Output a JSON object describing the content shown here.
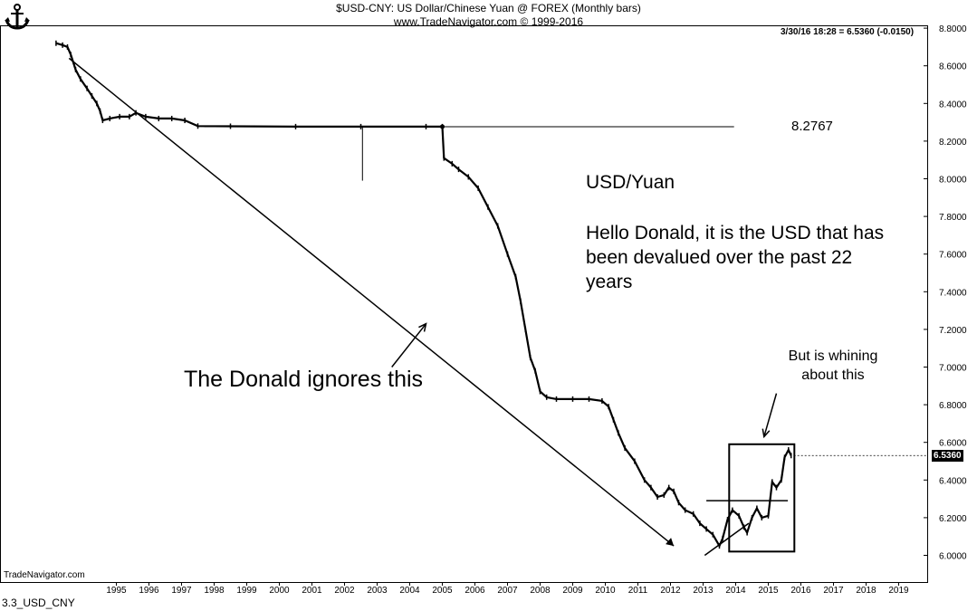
{
  "header": {
    "title": "$USD-CNY:  US Dollar/Chinese Yuan @ FOREX  (Monthly bars)",
    "subtitle": "www.TradeNavigator.com © 1999-2016",
    "quote": "3/30/16 18:28 = 6.5360 (-0.0150)",
    "watermark": "TradeNavigator.com",
    "figure_label": "3.3_USD_CNY"
  },
  "annotations": {
    "fixed_level": "8.2767",
    "pair": "USD/Yuan",
    "message": "Hello Donald, it is the USD that has been devalued over the past 22 years",
    "ignore": "The Donald ignores this",
    "whining": "But is whining about this"
  },
  "chart_data": {
    "type": "line",
    "title": "$USD-CNY:  US Dollar/Chinese Yuan @ FOREX  (Monthly bars)",
    "xlabel": "",
    "ylabel": "",
    "x_range": [
      1994,
      2019.5
    ],
    "ylim": [
      5.8,
      8.8
    ],
    "x_ticks": [
      "1995",
      "1996",
      "1997",
      "1998",
      "1999",
      "2000",
      "2001",
      "2002",
      "2003",
      "2004",
      "2005",
      "2006",
      "2007",
      "2008",
      "2009",
      "2010",
      "2011",
      "2012",
      "2013",
      "2014",
      "2015",
      "2016",
      "2017",
      "2018",
      "2019"
    ],
    "y_ticks": [
      "6.0000",
      "6.2000",
      "6.4000",
      "6.6000",
      "6.8000",
      "7.0000",
      "7.2000",
      "7.4000",
      "7.6000",
      "7.8000",
      "8.0000",
      "8.2000",
      "8.4000",
      "8.6000",
      "8.8000"
    ],
    "grid": false,
    "last_value": "6.5360",
    "series": [
      {
        "values": [
          [
            1993.65,
            8.72
          ],
          [
            1993.85,
            8.71
          ],
          [
            1994.0,
            8.7
          ],
          [
            1994.1,
            8.66
          ],
          [
            1994.25,
            8.58
          ],
          [
            1994.4,
            8.53
          ],
          [
            1994.6,
            8.48
          ],
          [
            1994.75,
            8.44
          ],
          [
            1994.9,
            8.4
          ],
          [
            1995.0,
            8.36
          ],
          [
            1995.08,
            8.31
          ],
          [
            1995.3,
            8.32
          ],
          [
            1995.6,
            8.33
          ],
          [
            1995.9,
            8.33
          ],
          [
            1996.1,
            8.35
          ],
          [
            1996.4,
            8.33
          ],
          [
            1996.8,
            8.32
          ],
          [
            1997.2,
            8.32
          ],
          [
            1997.6,
            8.31
          ],
          [
            1998.0,
            8.28
          ],
          [
            1999.0,
            8.279
          ],
          [
            2001.0,
            8.277
          ],
          [
            2003.0,
            8.277
          ],
          [
            2005.0,
            8.277
          ],
          [
            2005.5,
            8.277
          ],
          [
            2005.55,
            8.11
          ],
          [
            2005.8,
            8.08
          ],
          [
            2006.0,
            8.05
          ],
          [
            2006.3,
            8.01
          ],
          [
            2006.6,
            7.95
          ],
          [
            2006.9,
            7.85
          ],
          [
            2007.2,
            7.75
          ],
          [
            2007.5,
            7.6
          ],
          [
            2007.75,
            7.48
          ],
          [
            2007.9,
            7.35
          ],
          [
            2008.05,
            7.2
          ],
          [
            2008.2,
            7.05
          ],
          [
            2008.35,
            6.98
          ],
          [
            2008.5,
            6.87
          ],
          [
            2008.7,
            6.84
          ],
          [
            2009.0,
            6.83
          ],
          [
            2009.5,
            6.83
          ],
          [
            2010.0,
            6.83
          ],
          [
            2010.4,
            6.82
          ],
          [
            2010.6,
            6.79
          ],
          [
            2010.75,
            6.72
          ],
          [
            2010.9,
            6.65
          ],
          [
            2011.1,
            6.57
          ],
          [
            2011.4,
            6.5
          ],
          [
            2011.7,
            6.4
          ],
          [
            2011.9,
            6.36
          ],
          [
            2012.1,
            6.31
          ],
          [
            2012.3,
            6.32
          ],
          [
            2012.45,
            6.36
          ],
          [
            2012.6,
            6.34
          ],
          [
            2012.75,
            6.28
          ],
          [
            2012.95,
            6.24
          ],
          [
            2013.2,
            6.22
          ],
          [
            2013.4,
            6.17
          ],
          [
            2013.6,
            6.14
          ],
          [
            2013.8,
            6.11
          ],
          [
            2014.0,
            6.05
          ],
          [
            2014.1,
            6.09
          ],
          [
            2014.25,
            6.19
          ],
          [
            2014.4,
            6.24
          ],
          [
            2014.6,
            6.21
          ],
          [
            2014.75,
            6.15
          ],
          [
            2014.85,
            6.12
          ],
          [
            2015.0,
            6.2
          ],
          [
            2015.15,
            6.25
          ],
          [
            2015.3,
            6.2
          ],
          [
            2015.5,
            6.21
          ],
          [
            2015.62,
            6.39
          ],
          [
            2015.75,
            6.36
          ],
          [
            2015.9,
            6.4
          ],
          [
            2016.0,
            6.52
          ],
          [
            2016.12,
            6.56
          ],
          [
            2016.2,
            6.53
          ]
        ]
      }
    ],
    "reference_line": {
      "y": 8.2767,
      "x_start": 1998.2,
      "x_end": 2014.45
    },
    "spike": {
      "x": 2003.05,
      "y_from": 8.277,
      "y_to": 7.99
    },
    "trendline": {
      "from": [
        1994.05,
        8.64
      ],
      "to": [
        2012.6,
        6.05
      ]
    },
    "box": {
      "x": [
        2014.3,
        2016.3
      ],
      "y": [
        6.02,
        6.59
      ]
    },
    "breakout_line": {
      "x": [
        2013.6,
        2016.1
      ],
      "y": 6.29
    },
    "rising_line": {
      "from": [
        2013.55,
        6.0
      ],
      "to": [
        2014.9,
        6.17
      ]
    },
    "arrows": [
      {
        "from": [
          2003.95,
          7.0
        ],
        "to": [
          2005.0,
          7.23
        ]
      },
      {
        "from": [
          2015.75,
          6.86
        ],
        "to": [
          2015.37,
          6.63
        ]
      }
    ]
  }
}
